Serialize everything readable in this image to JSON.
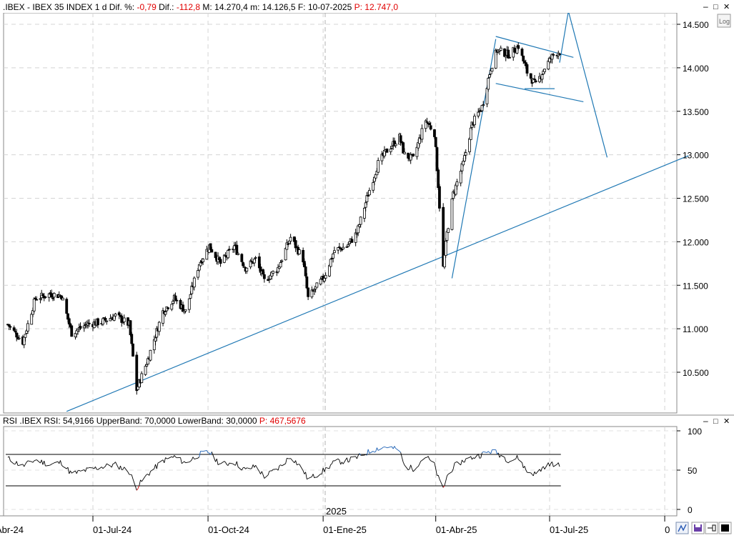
{
  "header": {
    "symbol": ".IBEX",
    "name": "IBEX 35 INDEX",
    "interval": "1 d",
    "dif_pct_label": "Dif. %:",
    "dif_pct_value": "-0,79",
    "dif_label": "Dif.:",
    "dif_value": "-112,8",
    "high_label": "M:",
    "high_value": "14.270,4",
    "low_label": "m:",
    "low_value": "14.126,5",
    "date_label": "F:",
    "date_value": "10-07-2025",
    "pointer_label": "P:",
    "pointer_value": "12.747,0",
    "log_button": "Log"
  },
  "rsi_header": {
    "text": "RSI .IBEX RSI: 54,9166  UpperBand: 70,0000  LowerBand: 30,0000",
    "pointer_label": "P:",
    "pointer_value": "467,5676"
  },
  "window_buttons": {
    "minimize": "–",
    "restore": "□",
    "close": "✕"
  },
  "colors": {
    "candles": "#000000",
    "trendlines": "#1f78b4",
    "rsi_line": "#000000",
    "rsi_over": "#1a5fb4",
    "rsi_under": "#cc0000"
  },
  "chart_data": [
    {
      "type": "candlestick",
      "title": "IBEX 35 INDEX",
      "y_ticks": [
        10500,
        11000,
        11500,
        12000,
        12500,
        13000,
        13500,
        14000,
        14500
      ],
      "y_tick_labels": [
        "10.500",
        "11.000",
        "11.500",
        "12.000",
        "12.500",
        "13.000",
        "13.500",
        "14.000",
        "14.500"
      ],
      "ylim": [
        10100,
        14650
      ],
      "x_tick_labels": [
        "Abr-24",
        "01-Jul-24",
        "01-Oct-24",
        "01-Ene-25",
        "01-Abr-25",
        "01-Jul-25",
        "0"
      ],
      "year_label": "2025",
      "grid": true,
      "close_series": [
        {
          "date": "2024-04-24",
          "close": 11050
        },
        {
          "date": "2024-05-06",
          "close": 10850
        },
        {
          "date": "2024-05-16",
          "close": 11350
        },
        {
          "date": "2024-05-28",
          "close": 11400
        },
        {
          "date": "2024-06-06",
          "close": 11380
        },
        {
          "date": "2024-06-14",
          "close": 10950
        },
        {
          "date": "2024-06-26",
          "close": 11050
        },
        {
          "date": "2024-07-08",
          "close": 11080
        },
        {
          "date": "2024-07-19",
          "close": 11150
        },
        {
          "date": "2024-07-30",
          "close": 11050
        },
        {
          "date": "2024-08-05",
          "close": 10300
        },
        {
          "date": "2024-08-14",
          "close": 10650
        },
        {
          "date": "2024-08-26",
          "close": 11200
        },
        {
          "date": "2024-09-04",
          "close": 11350
        },
        {
          "date": "2024-09-13",
          "close": 11200
        },
        {
          "date": "2024-09-24",
          "close": 11750
        },
        {
          "date": "2024-10-02",
          "close": 11950
        },
        {
          "date": "2024-10-11",
          "close": 11750
        },
        {
          "date": "2024-10-22",
          "close": 11950
        },
        {
          "date": "2024-10-31",
          "close": 11700
        },
        {
          "date": "2024-11-08",
          "close": 11800
        },
        {
          "date": "2024-11-15",
          "close": 11550
        },
        {
          "date": "2024-11-26",
          "close": 11700
        },
        {
          "date": "2024-12-06",
          "close": 12050
        },
        {
          "date": "2024-12-16",
          "close": 11800
        },
        {
          "date": "2024-12-20",
          "close": 11350
        },
        {
          "date": "2025-01-02",
          "close": 11600
        },
        {
          "date": "2025-01-10",
          "close": 11900
        },
        {
          "date": "2025-01-20",
          "close": 11950
        },
        {
          "date": "2025-01-28",
          "close": 12100
        },
        {
          "date": "2025-02-06",
          "close": 12550
        },
        {
          "date": "2025-02-14",
          "close": 12900
        },
        {
          "date": "2025-02-21",
          "close": 13050
        },
        {
          "date": "2025-03-03",
          "close": 13200
        },
        {
          "date": "2025-03-07",
          "close": 13000
        },
        {
          "date": "2025-03-14",
          "close": 12950
        },
        {
          "date": "2025-03-24",
          "close": 13400
        },
        {
          "date": "2025-03-31",
          "close": 13250
        },
        {
          "date": "2025-04-03",
          "close": 12650
        },
        {
          "date": "2025-04-07",
          "close": 11700
        },
        {
          "date": "2025-04-10",
          "close": 12100
        },
        {
          "date": "2025-04-15",
          "close": 12550
        },
        {
          "date": "2025-04-23",
          "close": 12900
        },
        {
          "date": "2025-04-30",
          "close": 13350
        },
        {
          "date": "2025-05-08",
          "close": 13550
        },
        {
          "date": "2025-05-15",
          "close": 14000
        },
        {
          "date": "2025-05-20",
          "close": 14200
        },
        {
          "date": "2025-05-30",
          "close": 14150
        },
        {
          "date": "2025-06-06",
          "close": 14250
        },
        {
          "date": "2025-06-13",
          "close": 13950
        },
        {
          "date": "2025-06-20",
          "close": 13800
        },
        {
          "date": "2025-06-27",
          "close": 14000
        },
        {
          "date": "2025-07-04",
          "close": 14150
        },
        {
          "date": "2025-07-10",
          "close": 14200
        }
      ],
      "trendlines": [
        {
          "name": "support",
          "points": [
            {
              "date": "2024-06-10",
              "value": 10050
            },
            {
              "date": "2025-10-20",
              "value": 12990
            }
          ]
        },
        {
          "name": "impulse",
          "points": [
            {
              "date": "2025-04-14",
              "value": 11580
            },
            {
              "date": "2025-05-19",
              "value": 14330
            }
          ]
        },
        {
          "name": "channel-upper",
          "points": [
            {
              "date": "2025-05-19",
              "value": 14360
            },
            {
              "date": "2025-07-20",
              "value": 14120
            }
          ]
        },
        {
          "name": "channel-lower",
          "points": [
            {
              "date": "2025-05-19",
              "value": 13820
            },
            {
              "date": "2025-07-28",
              "value": 13610
            }
          ]
        },
        {
          "name": "channel-mid",
          "points": [
            {
              "date": "2025-06-11",
              "value": 13760
            },
            {
              "date": "2025-07-05",
              "value": 13760
            }
          ]
        },
        {
          "name": "projection",
          "points": [
            {
              "date": "2025-07-09",
              "value": 14060
            },
            {
              "date": "2025-07-16",
              "value": 14650
            },
            {
              "date": "2025-08-16",
              "value": 12970
            }
          ]
        }
      ]
    },
    {
      "type": "line",
      "title": "RSI .IBEX",
      "y_ticks": [
        0,
        50,
        100
      ],
      "ylim": [
        -7,
        103
      ],
      "upper_band": 70,
      "lower_band": 30,
      "series": [
        {
          "name": "RSI",
          "points": [
            {
              "date": "2024-04-24",
              "value": 65
            },
            {
              "date": "2024-05-06",
              "value": 55
            },
            {
              "date": "2024-05-16",
              "value": 63
            },
            {
              "date": "2024-05-28",
              "value": 57
            },
            {
              "date": "2024-06-06",
              "value": 60
            },
            {
              "date": "2024-06-14",
              "value": 45
            },
            {
              "date": "2024-06-26",
              "value": 50
            },
            {
              "date": "2024-07-08",
              "value": 54
            },
            {
              "date": "2024-07-19",
              "value": 57
            },
            {
              "date": "2024-07-30",
              "value": 48
            },
            {
              "date": "2024-08-05",
              "value": 28
            },
            {
              "date": "2024-08-14",
              "value": 45
            },
            {
              "date": "2024-08-26",
              "value": 62
            },
            {
              "date": "2024-09-04",
              "value": 67
            },
            {
              "date": "2024-09-13",
              "value": 59
            },
            {
              "date": "2024-09-24",
              "value": 70
            },
            {
              "date": "2024-10-02",
              "value": 73
            },
            {
              "date": "2024-10-11",
              "value": 57
            },
            {
              "date": "2024-10-22",
              "value": 60
            },
            {
              "date": "2024-10-31",
              "value": 50
            },
            {
              "date": "2024-11-08",
              "value": 55
            },
            {
              "date": "2024-11-15",
              "value": 42
            },
            {
              "date": "2024-11-26",
              "value": 52
            },
            {
              "date": "2024-12-06",
              "value": 68
            },
            {
              "date": "2024-12-16",
              "value": 50
            },
            {
              "date": "2024-12-20",
              "value": 38
            },
            {
              "date": "2025-01-02",
              "value": 50
            },
            {
              "date": "2025-01-10",
              "value": 60
            },
            {
              "date": "2025-01-20",
              "value": 62
            },
            {
              "date": "2025-01-28",
              "value": 66
            },
            {
              "date": "2025-02-06",
              "value": 73
            },
            {
              "date": "2025-02-14",
              "value": 78
            },
            {
              "date": "2025-02-21",
              "value": 80
            },
            {
              "date": "2025-03-03",
              "value": 75
            },
            {
              "date": "2025-03-07",
              "value": 55
            },
            {
              "date": "2025-03-14",
              "value": 52
            },
            {
              "date": "2025-03-24",
              "value": 68
            },
            {
              "date": "2025-03-31",
              "value": 56
            },
            {
              "date": "2025-04-03",
              "value": 40
            },
            {
              "date": "2025-04-07",
              "value": 26
            },
            {
              "date": "2025-04-10",
              "value": 42
            },
            {
              "date": "2025-04-15",
              "value": 54
            },
            {
              "date": "2025-04-23",
              "value": 62
            },
            {
              "date": "2025-04-30",
              "value": 66
            },
            {
              "date": "2025-05-08",
              "value": 70
            },
            {
              "date": "2025-05-15",
              "value": 74
            },
            {
              "date": "2025-05-20",
              "value": 72
            },
            {
              "date": "2025-05-30",
              "value": 62
            },
            {
              "date": "2025-06-06",
              "value": 66
            },
            {
              "date": "2025-06-13",
              "value": 48
            },
            {
              "date": "2025-06-20",
              "value": 45
            },
            {
              "date": "2025-06-27",
              "value": 55
            },
            {
              "date": "2025-07-04",
              "value": 58
            },
            {
              "date": "2025-07-10",
              "value": 55
            }
          ]
        }
      ]
    }
  ]
}
